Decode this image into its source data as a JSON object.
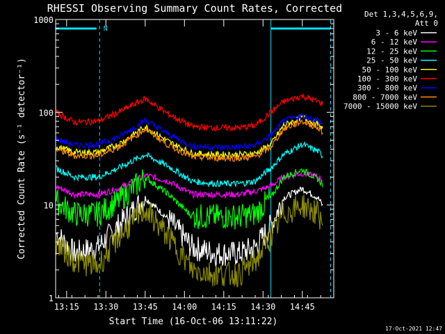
{
  "chart_data": {
    "type": "line",
    "title": "RHESSI Observing Summary Count Rates, Corrected",
    "xlabel": "Start Time (16-Oct-06 13:11:22)",
    "ylabel": "Corrected Count Rate (s⁻¹ detector⁻¹)",
    "y_log": true,
    "ylim": [
      1,
      1000
    ],
    "xlim_min": [
      10.5,
      57
    ],
    "y_ticks": [
      {
        "value": 1,
        "label": "1"
      },
      {
        "value": 10,
        "label": "10"
      },
      {
        "value": 100,
        "label": "100"
      },
      {
        "value": 1000,
        "label": "1000"
      }
    ],
    "x_ticks": [
      {
        "value": 13.25,
        "label": "13:15"
      },
      {
        "value": 13.5,
        "label": "13:30"
      },
      {
        "value": 13.75,
        "label": "13:45"
      },
      {
        "value": 14.0,
        "label": "14:00"
      },
      {
        "value": 14.25,
        "label": "14:15"
      },
      {
        "value": 14.5,
        "label": "14:30"
      },
      {
        "value": 14.75,
        "label": "14:45"
      }
    ],
    "x_hours_range": [
      13.18,
      14.95
    ],
    "legend_header": [
      "Det 1,3,4,5,6,9,",
      "Att 0"
    ],
    "legend_position": "right",
    "night_marker_label": "N",
    "night_bars_hours": [
      [
        13.18,
        13.44
      ],
      [
        14.55,
        14.93
      ]
    ],
    "shading_lines_hours": [
      13.18,
      13.46,
      14.55,
      14.93
    ],
    "series": [
      {
        "name": "3 - 6 keV",
        "color": "#ffffff",
        "x": [
          13.18,
          13.3,
          13.45,
          13.58,
          13.75,
          13.9,
          14.05,
          14.2,
          14.35,
          14.45,
          14.55,
          14.63,
          14.75,
          14.85,
          14.93
        ],
        "y": [
          5,
          3,
          3.5,
          6,
          12,
          7,
          3.5,
          3,
          3,
          3.5,
          6,
          12,
          15,
          12,
          7
        ]
      },
      {
        "name": "6 - 12 keV",
        "color": "#ff00ff",
        "x": [
          13.18,
          13.3,
          13.45,
          13.58,
          13.75,
          13.9,
          14.05,
          14.2,
          14.35,
          14.45,
          14.55,
          14.63,
          14.75,
          14.85,
          14.93
        ],
        "y": [
          16,
          13,
          13,
          15,
          21,
          18,
          13,
          13,
          13,
          14,
          16,
          20,
          22,
          20,
          17
        ]
      },
      {
        "name": "12 - 25 keV",
        "color": "#00ff00",
        "x": [
          13.18,
          13.3,
          13.45,
          13.58,
          13.75,
          13.9,
          14.05,
          14.2,
          14.35,
          14.45,
          14.55,
          14.63,
          14.75,
          14.85,
          14.93
        ],
        "y": [
          11,
          8,
          8,
          11,
          20,
          13,
          7.5,
          7.5,
          7.5,
          8,
          12,
          20,
          24,
          19,
          13
        ]
      },
      {
        "name": "25 - 50 keV",
        "color": "#00ffff",
        "x": [
          13.18,
          13.3,
          13.45,
          13.58,
          13.75,
          13.9,
          14.05,
          14.2,
          14.35,
          14.45,
          14.55,
          14.63,
          14.75,
          14.85,
          14.93
        ],
        "y": [
          25,
          20,
          20,
          25,
          35,
          26,
          18,
          17,
          17,
          18,
          25,
          35,
          45,
          38,
          28
        ]
      },
      {
        "name": "50 - 100 keV",
        "color": "#ffff00",
        "x": [
          13.18,
          13.3,
          13.45,
          13.58,
          13.75,
          13.9,
          14.05,
          14.2,
          14.35,
          14.45,
          14.55,
          14.63,
          14.75,
          14.85,
          14.93
        ],
        "y": [
          43,
          37,
          37,
          45,
          70,
          48,
          36,
          35,
          35,
          36,
          45,
          72,
          88,
          74,
          55
        ]
      },
      {
        "name": "100 - 300 keV",
        "color": "#ff0000",
        "x": [
          13.18,
          13.3,
          13.45,
          13.58,
          13.75,
          13.9,
          14.05,
          14.2,
          14.35,
          14.45,
          14.55,
          14.63,
          14.75,
          14.85,
          14.93
        ],
        "y": [
          100,
          78,
          80,
          100,
          140,
          95,
          70,
          68,
          68,
          72,
          100,
          130,
          150,
          130,
          115
        ]
      },
      {
        "name": "300 - 800 keV",
        "color": "#0000ff",
        "x": [
          13.18,
          13.3,
          13.45,
          13.58,
          13.75,
          13.9,
          14.05,
          14.2,
          14.35,
          14.45,
          14.55,
          14.63,
          14.75,
          14.85,
          14.93
        ],
        "y": [
          52,
          44,
          45,
          54,
          82,
          58,
          43,
          42,
          42,
          44,
          56,
          80,
          92,
          82,
          60
        ]
      },
      {
        "name": "800 - 7000 keV",
        "color": "#ff8c00",
        "x": [
          13.18,
          13.3,
          13.45,
          13.58,
          13.75,
          13.9,
          14.05,
          14.2,
          14.35,
          14.45,
          14.55,
          14.63,
          14.75,
          14.85,
          14.93
        ],
        "y": [
          40,
          34,
          34,
          42,
          66,
          44,
          33,
          32,
          32,
          33,
          42,
          66,
          80,
          68,
          50
        ]
      },
      {
        "name": "7000 - 15000 keV",
        "color": "#8b8b00",
        "x": [
          13.18,
          13.3,
          13.45,
          13.58,
          13.75,
          13.9,
          14.05,
          14.2,
          14.35,
          14.45,
          14.55,
          14.63,
          14.75,
          14.85,
          14.93
        ],
        "y": [
          4,
          2.5,
          2.2,
          4.5,
          9,
          4.5,
          2,
          1.8,
          1.8,
          2.5,
          4.5,
          8,
          10,
          8,
          5
        ]
      }
    ]
  },
  "footer_timestamp": "17-Oct-2021 12:47"
}
